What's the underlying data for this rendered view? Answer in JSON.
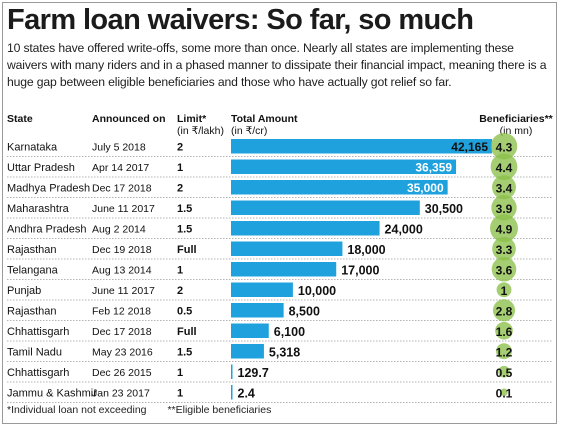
{
  "title": "Farm loan waivers: So far, so much",
  "subtitle": "10 states have offered write-offs, some more than once. Nearly all states are implementing these waivers with many riders and in a phased manner to dissipate their financial impact, meaning there is a huge gap between eligible beneficiaries and those who have actually got relief so far.",
  "headers": {
    "state": "State",
    "announced": "Announced on",
    "limit": "Limit*",
    "limit_unit": "(in ₹/lakh)",
    "total": "Total Amount",
    "total_unit": "(in ₹/cr)",
    "beneficiaries": "Beneficiaries**",
    "beneficiaries_unit": "(in mn)"
  },
  "footnotes": {
    "limit_note": "*Individual loan not exceeding",
    "beneficiaries_note": "**Eligible beneficiaries"
  },
  "colors": {
    "bar": "#1ea1dc",
    "bubble": "#8cc04a",
    "row_rule": "#9a9a9a"
  },
  "chart_data": {
    "type": "table",
    "columns": [
      "State",
      "Announced on",
      "Limit*",
      "Total Amount",
      "Beneficiaries**"
    ],
    "rows": [
      {
        "state": "Karnataka",
        "announced": "July 5 2018",
        "limit": "2",
        "amount": 42165,
        "amount_label": "42,165",
        "beneficiaries": 4.3,
        "beneficiaries_label": "4.3"
      },
      {
        "state": "Uttar Pradesh",
        "announced": "Apr 14 2017",
        "limit": "1",
        "amount": 36359,
        "amount_label": "36,359",
        "beneficiaries": 4.4,
        "beneficiaries_label": "4.4"
      },
      {
        "state": "Madhya Pradesh",
        "announced": "Dec 17 2018",
        "limit": "2",
        "amount": 35000,
        "amount_label": "35,000",
        "beneficiaries": 3.4,
        "beneficiaries_label": "3.4"
      },
      {
        "state": "Maharashtra",
        "announced": "June 11 2017",
        "limit": "1.5",
        "amount": 30500,
        "amount_label": "30,500",
        "beneficiaries": 3.9,
        "beneficiaries_label": "3.9"
      },
      {
        "state": "Andhra Pradesh",
        "announced": "Aug 2 2014",
        "limit": "1.5",
        "amount": 24000,
        "amount_label": "24,000",
        "beneficiaries": 4.9,
        "beneficiaries_label": "4.9"
      },
      {
        "state": "Rajasthan",
        "announced": "Dec 19 2018",
        "limit": "Full",
        "amount": 18000,
        "amount_label": "18,000",
        "beneficiaries": 3.3,
        "beneficiaries_label": "3.3"
      },
      {
        "state": "Telangana",
        "announced": "Aug 13 2014",
        "limit": "1",
        "amount": 17000,
        "amount_label": "17,000",
        "beneficiaries": 3.6,
        "beneficiaries_label": "3.6"
      },
      {
        "state": "Punjab",
        "announced": "June 11 2017",
        "limit": "2",
        "amount": 10000,
        "amount_label": "10,000",
        "beneficiaries": 1,
        "beneficiaries_label": "1"
      },
      {
        "state": "Rajasthan",
        "announced": "Feb 12 2018",
        "limit": "0.5",
        "amount": 8500,
        "amount_label": "8,500",
        "beneficiaries": 2.8,
        "beneficiaries_label": "2.8"
      },
      {
        "state": "Chhattisgarh",
        "announced": "Dec 17 2018",
        "limit": "Full",
        "amount": 6100,
        "amount_label": "6,100",
        "beneficiaries": 1.6,
        "beneficiaries_label": "1.6"
      },
      {
        "state": "Tamil Nadu",
        "announced": "May 23 2016",
        "limit": "1.5",
        "amount": 5318,
        "amount_label": "5,318",
        "beneficiaries": 1.2,
        "beneficiaries_label": "1.2"
      },
      {
        "state": "Chhattisgarh",
        "announced": "Dec 26 2015",
        "limit": "1",
        "amount": 129.7,
        "amount_label": "129.7",
        "beneficiaries": 0.5,
        "beneficiaries_label": "0.5"
      },
      {
        "state": "Jammu & Kashmir",
        "announced": "Jan 23 2017",
        "limit": "1",
        "amount": 2.4,
        "amount_label": "2.4",
        "beneficiaries": 0.1,
        "beneficiaries_label": "0.1"
      }
    ]
  }
}
